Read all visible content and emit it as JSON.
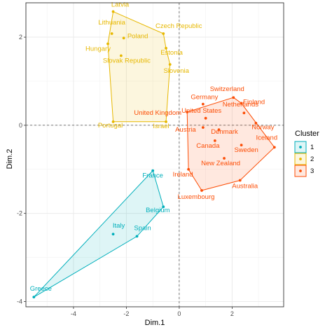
{
  "chart_data": {
    "type": "scatter",
    "title": "",
    "xlabel": "Dim.1",
    "ylabel": "Dim.2",
    "xlim": [
      -5.8,
      3.95
    ],
    "ylim": [
      -4.12,
      2.78
    ],
    "xticks": [
      -4,
      -2,
      0,
      2
    ],
    "yticks": [
      -4,
      -2,
      0,
      2
    ],
    "grid": true,
    "legend": {
      "title": "Cluster",
      "placement": "right",
      "items": [
        {
          "label": "1",
          "color": "#00AFBB"
        },
        {
          "label": "2",
          "color": "#E7B800"
        },
        {
          "label": "3",
          "color": "#FC4E07"
        }
      ]
    },
    "series": [
      {
        "name": "1",
        "color": "#00AFBB",
        "points": [
          {
            "label": "France",
            "x": -1.0,
            "y": -1.03
          },
          {
            "label": "Belgium",
            "x": -0.6,
            "y": -1.85
          },
          {
            "label": "Italy",
            "x": -2.5,
            "y": -2.47
          },
          {
            "label": "Spain",
            "x": -1.6,
            "y": -2.52
          },
          {
            "label": "Greece",
            "x": -5.5,
            "y": -3.9
          }
        ],
        "hull": [
          "France",
          "Belgium",
          "Spain",
          "Greece"
        ]
      },
      {
        "name": "2",
        "color": "#E7B800",
        "points": [
          {
            "label": "Latvia",
            "x": -2.5,
            "y": 2.58
          },
          {
            "label": "Lithuania",
            "x": -2.55,
            "y": 2.08
          },
          {
            "label": "Poland",
            "x": -2.1,
            "y": 1.98
          },
          {
            "label": "Czech Republic",
            "x": -0.6,
            "y": 2.08
          },
          {
            "label": "Hungary",
            "x": -2.7,
            "y": 1.85
          },
          {
            "label": "Estonia",
            "x": -0.5,
            "y": 1.75
          },
          {
            "label": "Slovak Republic",
            "x": -2.2,
            "y": 1.58
          },
          {
            "label": "Slovenia",
            "x": -0.35,
            "y": 1.38
          },
          {
            "label": "Portugal",
            "x": -2.5,
            "y": 0.08
          },
          {
            "label": "Israel",
            "x": -0.5,
            "y": 0.08
          }
        ],
        "hull": [
          "Latvia",
          "Czech Republic",
          "Estonia",
          "Slovenia",
          "Israel",
          "Portugal",
          "Hungary"
        ]
      },
      {
        "name": "3",
        "color": "#FC4E07",
        "points": [
          {
            "label": "Switzerland",
            "x": 2.05,
            "y": 0.63
          },
          {
            "label": "Finland",
            "x": 2.35,
            "y": 0.5
          },
          {
            "label": "Germany",
            "x": 0.9,
            "y": 0.48
          },
          {
            "label": "United Kingdom",
            "x": 0.3,
            "y": 0.3
          },
          {
            "label": "Netherlands",
            "x": 2.45,
            "y": 0.28
          },
          {
            "label": "United States",
            "x": 1.0,
            "y": 0.16
          },
          {
            "label": "Austria",
            "x": 0.9,
            "y": -0.05
          },
          {
            "label": "Denmark",
            "x": 1.5,
            "y": -0.1
          },
          {
            "label": "Norway",
            "x": 2.9,
            "y": 0.05
          },
          {
            "label": "Canada",
            "x": 1.35,
            "y": -0.35
          },
          {
            "label": "Iceland",
            "x": 3.6,
            "y": -0.5
          },
          {
            "label": "Sweden",
            "x": 2.35,
            "y": -0.45
          },
          {
            "label": "New Zealand",
            "x": 1.7,
            "y": -0.75
          },
          {
            "label": "Ireland",
            "x": 0.35,
            "y": -1.0
          },
          {
            "label": "Australia",
            "x": 2.3,
            "y": -1.25
          },
          {
            "label": "Luxembourg",
            "x": 0.85,
            "y": -1.48
          }
        ],
        "hull": [
          "Switzerland",
          "Finland",
          "Iceland",
          "Australia",
          "Luxembourg",
          "Ireland",
          "United Kingdom"
        ]
      }
    ]
  }
}
